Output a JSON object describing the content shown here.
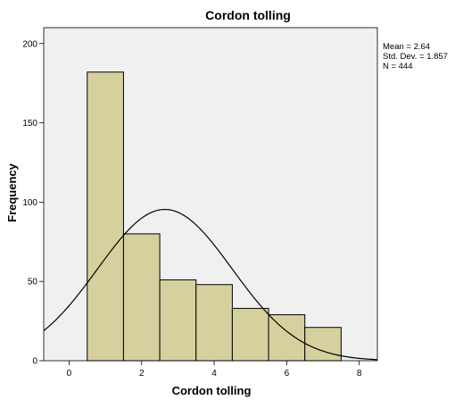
{
  "chart_data": {
    "type": "bar",
    "title": "Cordon tolling",
    "xlabel": "Cordon tolling",
    "ylabel": "Frequency",
    "bins": [
      {
        "x0": 0.5,
        "x1": 1.5,
        "count": 182
      },
      {
        "x0": 1.5,
        "x1": 2.5,
        "count": 80
      },
      {
        "x0": 2.5,
        "x1": 3.5,
        "count": 51
      },
      {
        "x0": 3.5,
        "x1": 4.5,
        "count": 48
      },
      {
        "x0": 4.5,
        "x1": 5.5,
        "count": 33
      },
      {
        "x0": 5.5,
        "x1": 6.5,
        "count": 29
      },
      {
        "x0": 6.5,
        "x1": 7.5,
        "count": 21
      }
    ],
    "xlim": [
      -0.7,
      8.5
    ],
    "ylim": [
      0,
      210
    ],
    "xticks": [
      "0",
      "2",
      "4",
      "6",
      "8"
    ],
    "yticks": [
      "0",
      "50",
      "100",
      "150",
      "200"
    ],
    "normal_curve": {
      "mean": 2.64,
      "sd": 1.857,
      "n": 444,
      "bin_width": 1
    },
    "stats": {
      "mean": "Mean = 2.64",
      "sd": "Std. Dev. = 1.857",
      "n": "N = 444"
    },
    "colors": {
      "bar_fill": "#d5d09e",
      "bar_stroke": "#000000",
      "plot_bg": "#f0f0f0",
      "curve": "#000000"
    }
  }
}
